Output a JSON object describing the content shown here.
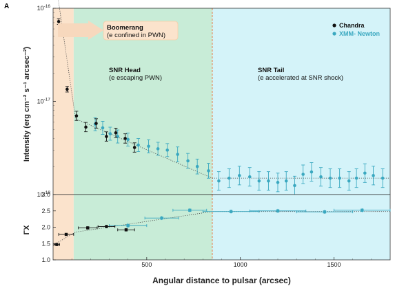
{
  "panel_label": "A",
  "colors": {
    "boomerang_region": "#fbe3cc",
    "head_region": "#c8ecd7",
    "tail_region": "#d4f3f9",
    "chandra": "#111111",
    "xmm": "#3aa8c0",
    "shock_line": "#e58b5a",
    "arrow": "#f7d8bd"
  },
  "chart_data": [
    {
      "type": "scatter",
      "panel": "top",
      "ylabel": "Intensity (erg cm⁻² s⁻¹ arcsec⁻²)",
      "y_scale": "log",
      "xlim": [
        0,
        1800
      ],
      "ylim": [
        1e-18,
        1e-16
      ],
      "y_ticks": [
        {
          "value": 1e-16,
          "base": "10",
          "exp": "-16"
        },
        {
          "value": 1e-17,
          "base": "10",
          "exp": "-17"
        },
        {
          "value": 1e-18,
          "base": "10",
          "exp": "-18"
        }
      ],
      "regions": [
        {
          "name": "Boomerang",
          "x": [
            0,
            110
          ]
        },
        {
          "name": "SNR Head",
          "x": [
            110,
            850
          ]
        },
        {
          "name": "SNR Tail",
          "x": [
            850,
            1800
          ]
        }
      ],
      "shock_x": 850,
      "annotations": [
        {
          "title": "Boomerang",
          "subtitle": "(e confined in PWN)"
        },
        {
          "title": "SNR Head",
          "subtitle": "(e escaping PWN)"
        },
        {
          "title": "SNR Tail",
          "subtitle": "(e accelerated at SNR shock)"
        }
      ],
      "series": [
        {
          "name": "Chandra",
          "points": [
            {
              "x": 30,
              "y": 7.2e-17,
              "err": 0.03
            },
            {
              "x": 75,
              "y": 1.35e-17,
              "err": 0.03
            },
            {
              "x": 125,
              "y": 7e-18,
              "err": 0.05
            },
            {
              "x": 175,
              "y": 5.3e-18,
              "err": 0.05
            },
            {
              "x": 230,
              "y": 5.8e-18,
              "err": 0.05
            },
            {
              "x": 285,
              "y": 4.2e-18,
              "err": 0.05
            },
            {
              "x": 335,
              "y": 4.6e-18,
              "err": 0.05
            },
            {
              "x": 385,
              "y": 4e-18,
              "err": 0.05
            },
            {
              "x": 435,
              "y": 3.2e-18,
              "err": 0.05
            }
          ]
        },
        {
          "name": "XMM- Newton",
          "points": [
            {
              "x": 225,
              "y": 5.7e-18,
              "err": 0.07
            },
            {
              "x": 265,
              "y": 5.2e-18,
              "err": 0.07
            },
            {
              "x": 305,
              "y": 4.5e-18,
              "err": 0.07
            },
            {
              "x": 345,
              "y": 4.2e-18,
              "err": 0.07
            },
            {
              "x": 400,
              "y": 3.9e-18,
              "err": 0.07
            },
            {
              "x": 455,
              "y": 3.4e-18,
              "err": 0.07
            },
            {
              "x": 510,
              "y": 3.3e-18,
              "err": 0.07
            },
            {
              "x": 560,
              "y": 3.1e-18,
              "err": 0.07
            },
            {
              "x": 610,
              "y": 3e-18,
              "err": 0.07
            },
            {
              "x": 665,
              "y": 2.7e-18,
              "err": 0.08
            },
            {
              "x": 720,
              "y": 2.3e-18,
              "err": 0.08
            },
            {
              "x": 770,
              "y": 2e-18,
              "err": 0.08
            },
            {
              "x": 830,
              "y": 1.8e-18,
              "err": 0.08
            },
            {
              "x": 885,
              "y": 1.4e-18,
              "err": 0.1
            },
            {
              "x": 940,
              "y": 1.5e-18,
              "err": 0.1
            },
            {
              "x": 995,
              "y": 1.6e-18,
              "err": 0.1
            },
            {
              "x": 1050,
              "y": 1.55e-18,
              "err": 0.1
            },
            {
              "x": 1100,
              "y": 1.4e-18,
              "err": 0.1
            },
            {
              "x": 1150,
              "y": 1.4e-18,
              "err": 0.1
            },
            {
              "x": 1200,
              "y": 1.35e-18,
              "err": 0.1
            },
            {
              "x": 1245,
              "y": 1.4e-18,
              "err": 0.1
            },
            {
              "x": 1290,
              "y": 1.25e-18,
              "err": 0.1
            },
            {
              "x": 1335,
              "y": 1.65e-18,
              "err": 0.1
            },
            {
              "x": 1380,
              "y": 1.75e-18,
              "err": 0.1
            },
            {
              "x": 1430,
              "y": 1.55e-18,
              "err": 0.1
            },
            {
              "x": 1480,
              "y": 1.5e-18,
              "err": 0.1
            },
            {
              "x": 1530,
              "y": 1.5e-18,
              "err": 0.1
            },
            {
              "x": 1580,
              "y": 1.4e-18,
              "err": 0.1
            },
            {
              "x": 1620,
              "y": 1.5e-18,
              "err": 0.1
            },
            {
              "x": 1665,
              "y": 1.7e-18,
              "err": 0.1
            },
            {
              "x": 1710,
              "y": 1.6e-18,
              "err": 0.1
            },
            {
              "x": 1760,
              "y": 1.5e-18,
              "err": 0.1
            }
          ]
        }
      ],
      "fit": [
        [
          0,
          3e-16
        ],
        [
          120,
          6.5e-18
        ],
        [
          850,
          1.5e-18
        ],
        [
          1800,
          1.5e-18
        ]
      ]
    },
    {
      "type": "scatter",
      "panel": "bottom",
      "ylabel": "ΓX",
      "xlabel": "Angular distance to pulsar (arcsec)",
      "xlim": [
        0,
        1800
      ],
      "ylim": [
        1.0,
        3.0
      ],
      "x_ticks": [
        500,
        1000,
        1500
      ],
      "y_ticks": [
        "1.0",
        "1.5",
        "2.0",
        "2.5",
        "3.0"
      ],
      "series": [
        {
          "name": "Chandra",
          "points": [
            {
              "x": 20,
              "y": 1.47,
              "xerr": 15,
              "yerr": 0.03
            },
            {
              "x": 70,
              "y": 1.78,
              "xerr": 40,
              "yerr": 0.03
            },
            {
              "x": 185,
              "y": 1.98,
              "xerr": 50,
              "yerr": 0.05
            },
            {
              "x": 285,
              "y": 2.02,
              "xerr": 45,
              "yerr": 0.05
            },
            {
              "x": 390,
              "y": 1.92,
              "xerr": 45,
              "yerr": 0.05
            }
          ]
        },
        {
          "name": "XMM- Newton",
          "points": [
            {
              "x": 400,
              "y": 2.05,
              "xerr": 100,
              "yerr": 0.08
            },
            {
              "x": 580,
              "y": 2.28,
              "xerr": 90,
              "yerr": 0.06
            },
            {
              "x": 730,
              "y": 2.52,
              "xerr": 90,
              "yerr": 0.06
            },
            {
              "x": 950,
              "y": 2.48,
              "xerr": 150,
              "yerr": 0.06
            },
            {
              "x": 1200,
              "y": 2.5,
              "xerr": 150,
              "yerr": 0.06
            },
            {
              "x": 1450,
              "y": 2.47,
              "xerr": 150,
              "yerr": 0.06
            },
            {
              "x": 1650,
              "y": 2.52,
              "xerr": 150,
              "yerr": 0.06
            }
          ]
        }
      ],
      "fit": [
        [
          0,
          1.45
        ],
        [
          120,
          1.85
        ],
        [
          850,
          2.48
        ],
        [
          1800,
          2.48
        ]
      ]
    }
  ]
}
